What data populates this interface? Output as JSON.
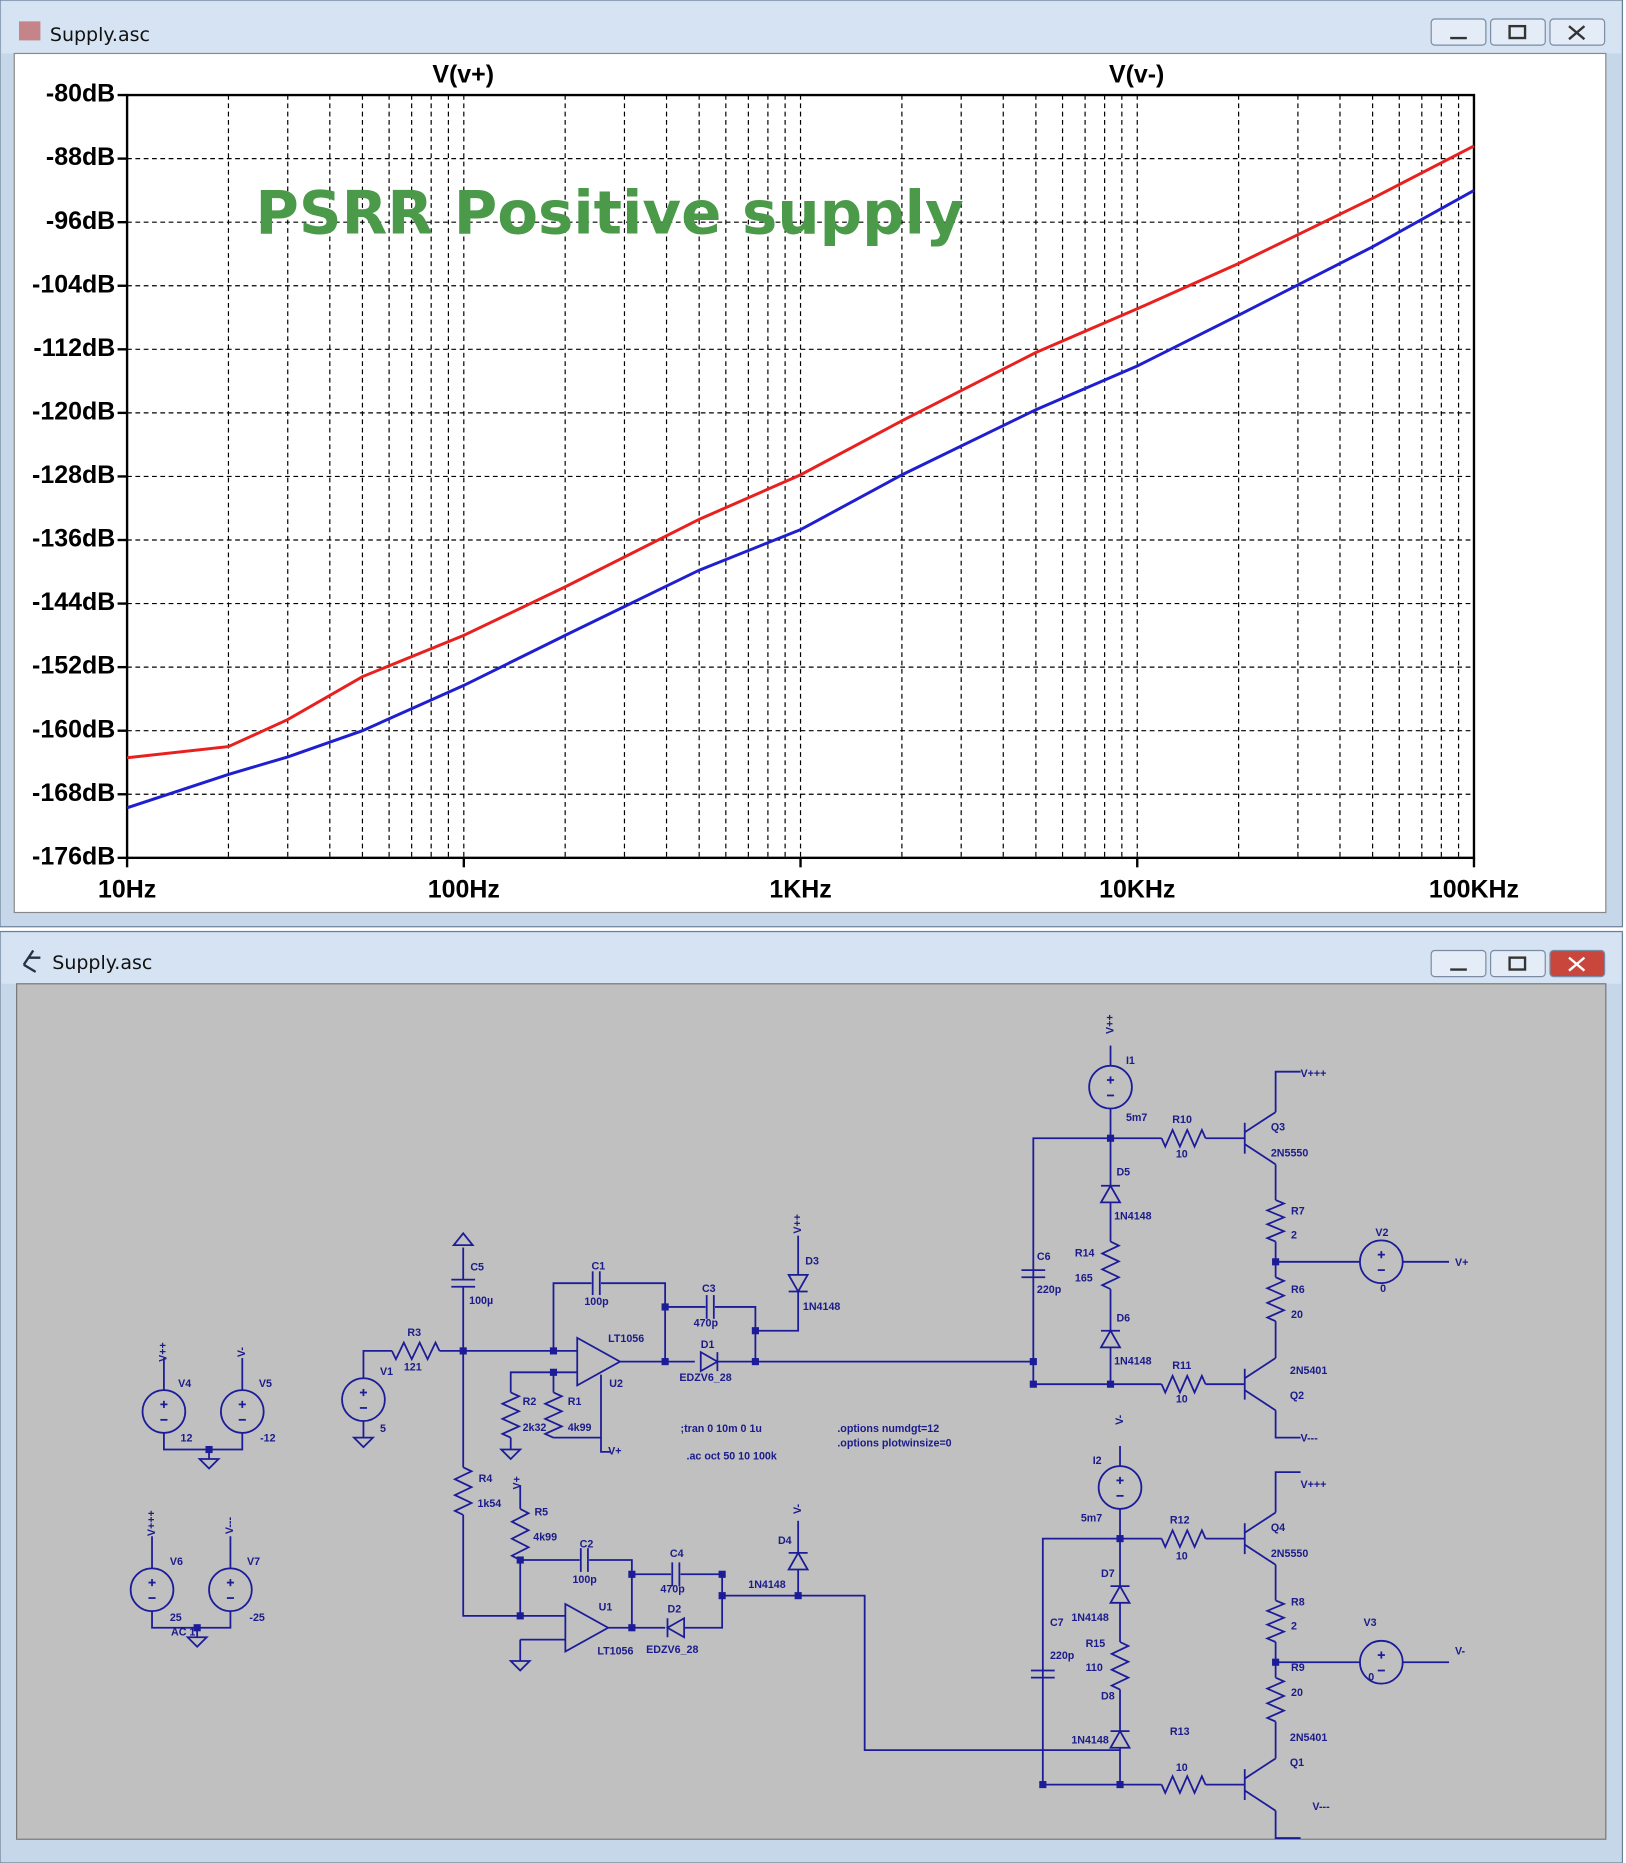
{
  "windows": [
    {
      "title": "Supply.asc"
    },
    {
      "title": "Supply.asc"
    }
  ],
  "chart_data": {
    "type": "line",
    "annotation": "PSRR Positive supply",
    "x": [
      10,
      20,
      30,
      50,
      100,
      200,
      500,
      1000,
      2000,
      5000,
      10000,
      20000,
      50000,
      100000
    ],
    "series": [
      {
        "name": "V(v+)",
        "color": "#e8201e",
        "values": [
          -163.4,
          -162,
          -158.6,
          -153.2,
          -148,
          -141.9,
          -133.4,
          -127.8,
          -121,
          -112.4,
          -106.9,
          -101.2,
          -93,
          -86.4
        ]
      },
      {
        "name": "V(v-)",
        "color": "#1f1fd0",
        "values": [
          -169.7,
          -165.5,
          -163.3,
          -160,
          -154.3,
          -148,
          -139.8,
          -134.7,
          -127.8,
          -119.6,
          -114.1,
          -107.7,
          -99.1,
          -92
        ]
      }
    ],
    "xscale": "log",
    "xlim": [
      10,
      100000
    ],
    "xticks": [
      {
        "value": 10,
        "label": "10Hz"
      },
      {
        "value": 100,
        "label": "100Hz"
      },
      {
        "value": 1000,
        "label": "1KHz"
      },
      {
        "value": 10000,
        "label": "10KHz"
      },
      {
        "value": 100000,
        "label": "100KHz"
      }
    ],
    "ylim": [
      -176,
      -80
    ],
    "yticks": [
      {
        "value": -80,
        "label": "-80dB"
      },
      {
        "value": -88,
        "label": "-88dB"
      },
      {
        "value": -96,
        "label": "-96dB"
      },
      {
        "value": -104,
        "label": "-104dB"
      },
      {
        "value": -112,
        "label": "-112dB"
      },
      {
        "value": -120,
        "label": "-120dB"
      },
      {
        "value": -128,
        "label": "-128dB"
      },
      {
        "value": -136,
        "label": "-136dB"
      },
      {
        "value": -144,
        "label": "-144dB"
      },
      {
        "value": -152,
        "label": "-152dB"
      },
      {
        "value": -160,
        "label": "-160dB"
      },
      {
        "value": -168,
        "label": "-168dB"
      },
      {
        "value": -176,
        "label": "-176dB"
      }
    ],
    "grid": true
  },
  "schematic": {
    "labels": [
      "V4",
      "V5",
      "12",
      "-12",
      "V6",
      "V7",
      "25",
      "-25",
      "AC 1",
      "V1",
      "5",
      "R3",
      "121",
      "C5",
      "100µ",
      "R2",
      "2k32",
      "R1",
      "4k99",
      "C1",
      "100p",
      "LT1056",
      "U2",
      "C3",
      "470p",
      "D1",
      "EDZV6_28",
      "D3",
      "1N4148",
      ";tran 0 10m 0 1u",
      ".ac oct 50 10 100k",
      ".options numdgt=12",
      ".options plotwinsize=0",
      "R4",
      "1k54",
      "R5",
      "4k99",
      "C2",
      "100p",
      "C4",
      "470p",
      "U1",
      "LT1056",
      "D2",
      "EDZV6_28",
      "D4",
      "1N4148",
      "I1",
      "5m7",
      "R10",
      "10",
      "Q3",
      "2N5550",
      "D5",
      "1N4148",
      "R14",
      "165",
      "C6",
      "220p",
      "D6",
      "1N4148",
      "R11",
      "10",
      "R7",
      "2",
      "V2",
      "0",
      "R6",
      "20",
      "2N5401",
      "Q2",
      "V+++",
      "V---",
      "V+",
      "I2",
      "5m7",
      "R12",
      "10",
      "Q4",
      "2N5550",
      "D7",
      "1N4148",
      "R15",
      "110",
      "C7",
      "220p",
      "D8",
      "1N4148",
      "R13",
      "10",
      "R8",
      "2",
      "V3",
      "0",
      "R9",
      "20",
      "2N5401",
      "Q1",
      "V+++",
      "V---",
      "V-",
      "V++",
      "V-",
      "V+++",
      "V---",
      "V++",
      "V-",
      "V++",
      "V-",
      "V+",
      "V+"
    ]
  }
}
